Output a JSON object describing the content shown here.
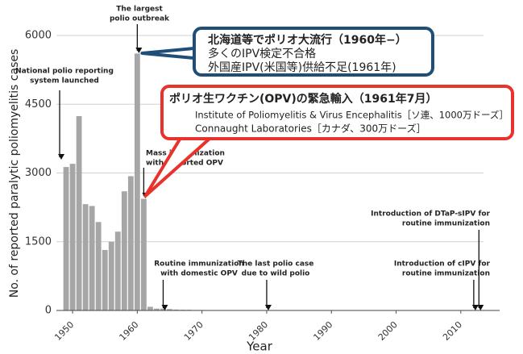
{
  "chart_data": {
    "type": "bar",
    "x_label": "Year",
    "y_label": "No. of reported paralytic poliomyelitis cases",
    "x": [
      1949,
      1950,
      1951,
      1952,
      1953,
      1954,
      1955,
      1956,
      1957,
      1958,
      1959,
      1960,
      1961,
      1962,
      1963,
      1964,
      1965,
      1966,
      1967,
      1968,
      1969,
      1970
    ],
    "values": [
      3130,
      3200,
      4240,
      2320,
      2280,
      1930,
      1320,
      1500,
      1720,
      2600,
      2930,
      5606,
      2436,
      80,
      40,
      40,
      30,
      20,
      15,
      15,
      10,
      10
    ],
    "color": "#a6a6a6",
    "xlim": [
      1947.5,
      2016
    ],
    "xticks": [
      1950,
      1960,
      1970,
      1980,
      1990,
      2000,
      2010
    ],
    "ylim": [
      0,
      6000
    ],
    "yticks": [
      0,
      1500,
      3000,
      4500,
      6000
    ],
    "grid": true,
    "annotations": [
      {
        "text": [
          "National polio reporting",
          "system launched"
        ],
        "x": 1948
      },
      {
        "text": [
          "The largest",
          "polio outbreak"
        ],
        "x": 1960
      },
      {
        "text": [
          "Mass immunization",
          "with imported OPV"
        ],
        "x": 1961
      },
      {
        "text": [
          "Routine immunization",
          "with domestic OPV"
        ],
        "x": 1964
      },
      {
        "text": [
          "The last polio case",
          "due to wild polio"
        ],
        "x": 1980
      },
      {
        "text": [
          "Introduction of cIPV for",
          "routine immunization"
        ],
        "x": 2012
      },
      {
        "text": [
          "Introduction of DTaP-sIPV for",
          "routine immunization"
        ],
        "x": 2012.8
      }
    ],
    "callouts": [
      {
        "lines": [
          "北海道等でポリオ大流行（1960年−）",
          "多くのIPV検定不合格",
          "外国産IPV(米国等)供給不足(1961年)"
        ],
        "color": "#1f4e79"
      },
      {
        "lines": [
          "ポリオ生ワクチン(OPV)の緊急輸入（1961年7月）",
          "Institute of Poliomyelitis & Virus Encephalitis［ソ連、1000万ドーズ］",
          "Connaught Laboratories［カナダ、300万ドーズ］"
        ],
        "color": "#e8322b"
      }
    ]
  }
}
